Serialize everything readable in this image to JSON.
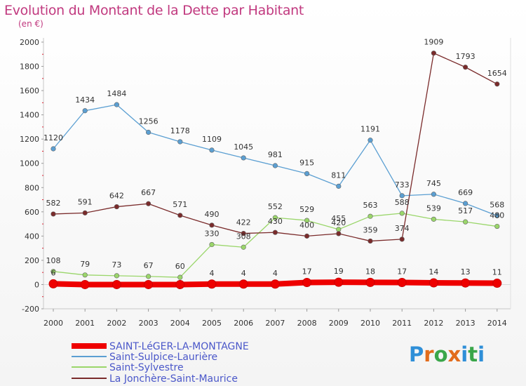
{
  "title": "Evolution du Montant de la Dette par Habitant",
  "subtitle": "(en €)",
  "logo": {
    "letters": [
      "P",
      "r",
      "o",
      "x",
      "i",
      "t",
      "i"
    ],
    "colors": [
      "#2f8fd8",
      "#e26c1c",
      "#3aa64a",
      "#e26c1c",
      "#2f8fd8",
      "#3aa64a",
      "#2f8fd8"
    ]
  },
  "chart_data": {
    "type": "line",
    "title": "Evolution du Montant de la Dette par Habitant",
    "ylabel": "(en €)",
    "xlabel": "",
    "x": [
      "2000",
      "2001",
      "2002",
      "2003",
      "2004",
      "2005",
      "2006",
      "2007",
      "2008",
      "2009",
      "2010",
      "2011",
      "2012",
      "2013",
      "2014"
    ],
    "ylim": [
      -200,
      2000
    ],
    "yticks": [
      -200,
      0,
      200,
      400,
      600,
      800,
      1000,
      1200,
      1400,
      1600,
      1800,
      2000
    ],
    "grid": false,
    "legend": "bottom-left",
    "series": [
      {
        "name": "SAINT-LéGER-LA-MONTAGNE",
        "color": "#ee0000",
        "values": [
          6,
          0,
          0,
          0,
          0,
          4,
          4,
          4,
          17,
          19,
          18,
          17,
          14,
          13,
          11
        ],
        "labels": [
          "6",
          "",
          "",
          "",
          "",
          "4",
          "4",
          "4",
          "17",
          "19",
          "18",
          "17",
          "14",
          "13",
          "11"
        ]
      },
      {
        "name": "Saint-Sulpice-Laurière",
        "color": "#5b9fd2",
        "values": [
          1120,
          1434,
          1484,
          1256,
          1178,
          1109,
          1045,
          981,
          915,
          811,
          1191,
          733,
          745,
          669,
          568
        ],
        "labels": [
          "1120",
          "1434",
          "1484",
          "1256",
          "1178",
          "1109",
          "1045",
          "981",
          "915",
          "811",
          "1191",
          "733",
          "745",
          "669",
          "568"
        ]
      },
      {
        "name": "Saint-Sylvestre",
        "color": "#9ad66a",
        "values": [
          108,
          79,
          73,
          67,
          60,
          330,
          308,
          552,
          529,
          455,
          563,
          588,
          539,
          517,
          480
        ],
        "labels": [
          "108",
          "79",
          "73",
          "67",
          "60",
          "330",
          "308",
          "552",
          "529",
          "455",
          "563",
          "588",
          "539",
          "517",
          "480"
        ]
      },
      {
        "name": "La Jonchère-Saint-Maurice",
        "color": "#7a2b2b",
        "values": [
          582,
          591,
          642,
          667,
          571,
          490,
          422,
          430,
          400,
          420,
          359,
          374,
          1909,
          1793,
          1654
        ],
        "labels": [
          "582",
          "591",
          "642",
          "667",
          "571",
          "490",
          "422",
          "430",
          "400",
          "420",
          "359",
          "374",
          "1909",
          "1793",
          "1654"
        ]
      }
    ]
  }
}
